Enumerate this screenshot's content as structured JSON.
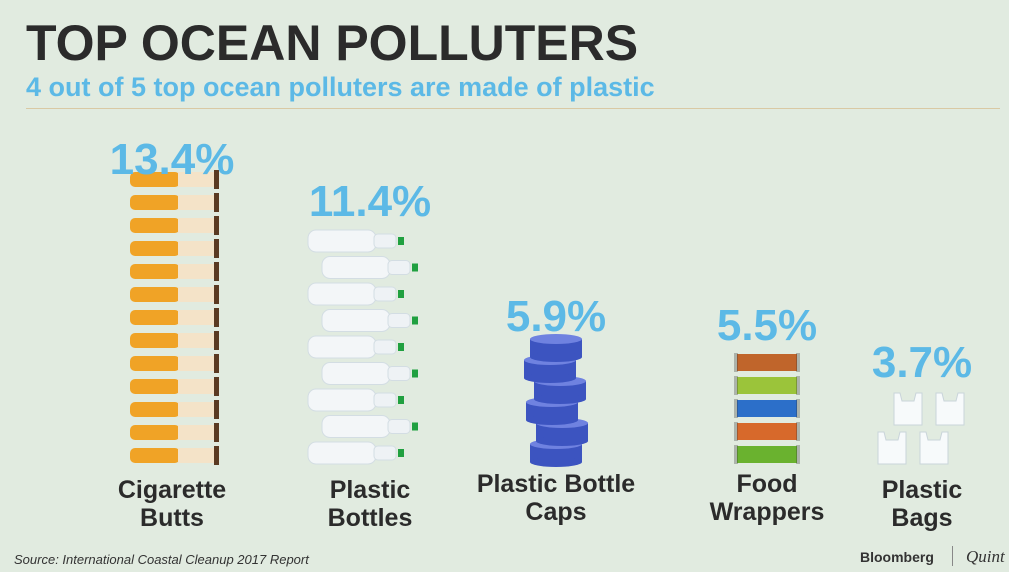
{
  "chart_data": {
    "type": "pictograph",
    "title": "TOP OCEAN POLLUTERS",
    "subtitle": "4 out of 5 top ocean polluters are made of plastic",
    "categories": [
      "Cigarette Butts",
      "Plastic Bottles",
      "Plastic Bottle Caps",
      "Food Wrappers",
      "Plastic Bags"
    ],
    "values": [
      13.4,
      11.4,
      5.9,
      5.5,
      3.7
    ],
    "value_labels": [
      "13.4%",
      "11.4%",
      "5.9%",
      "5.5%",
      "3.7%"
    ],
    "source": "Source:  International Coastal Cleanup 2017 Report",
    "brand": [
      "Bloomberg",
      "Quint"
    ]
  }
}
